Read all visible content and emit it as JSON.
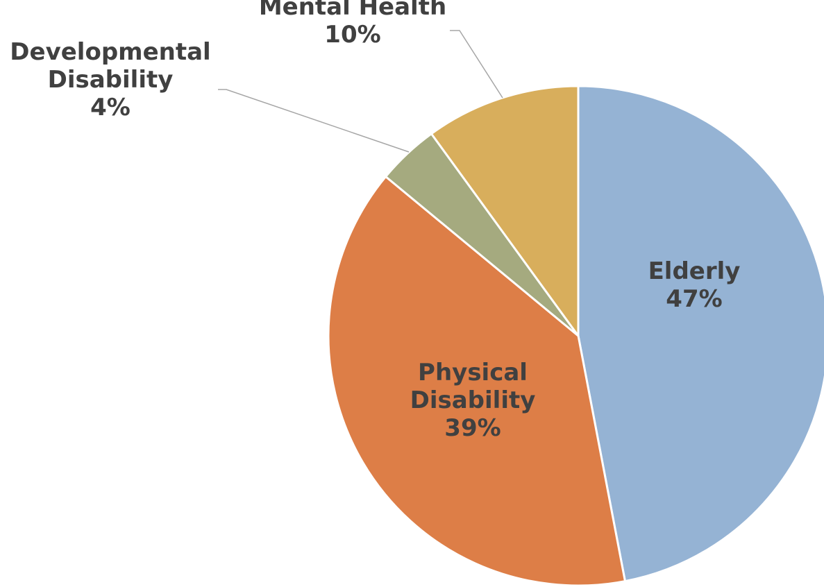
{
  "chart_data": {
    "type": "pie",
    "categories": [
      "Elderly",
      "Physical Disability",
      "Developmental Disability",
      "Mental Health"
    ],
    "values": [
      47,
      39,
      4,
      10
    ],
    "labels": [
      {
        "category": [
          "Elderly"
        ],
        "value": "47%"
      },
      {
        "category": [
          "Physical",
          "Disability"
        ],
        "value": "39%"
      },
      {
        "category": [
          "Developmental",
          "Disability"
        ],
        "value": "4%"
      },
      {
        "category": [
          "Mental Health"
        ],
        "value": "10%"
      }
    ],
    "colors": [
      "#95b3d4",
      "#dd7e47",
      "#a5aa7f",
      "#d8ae5c"
    ],
    "start_angle": "12 o'clock",
    "direction": "clockwise",
    "legend": "none"
  }
}
